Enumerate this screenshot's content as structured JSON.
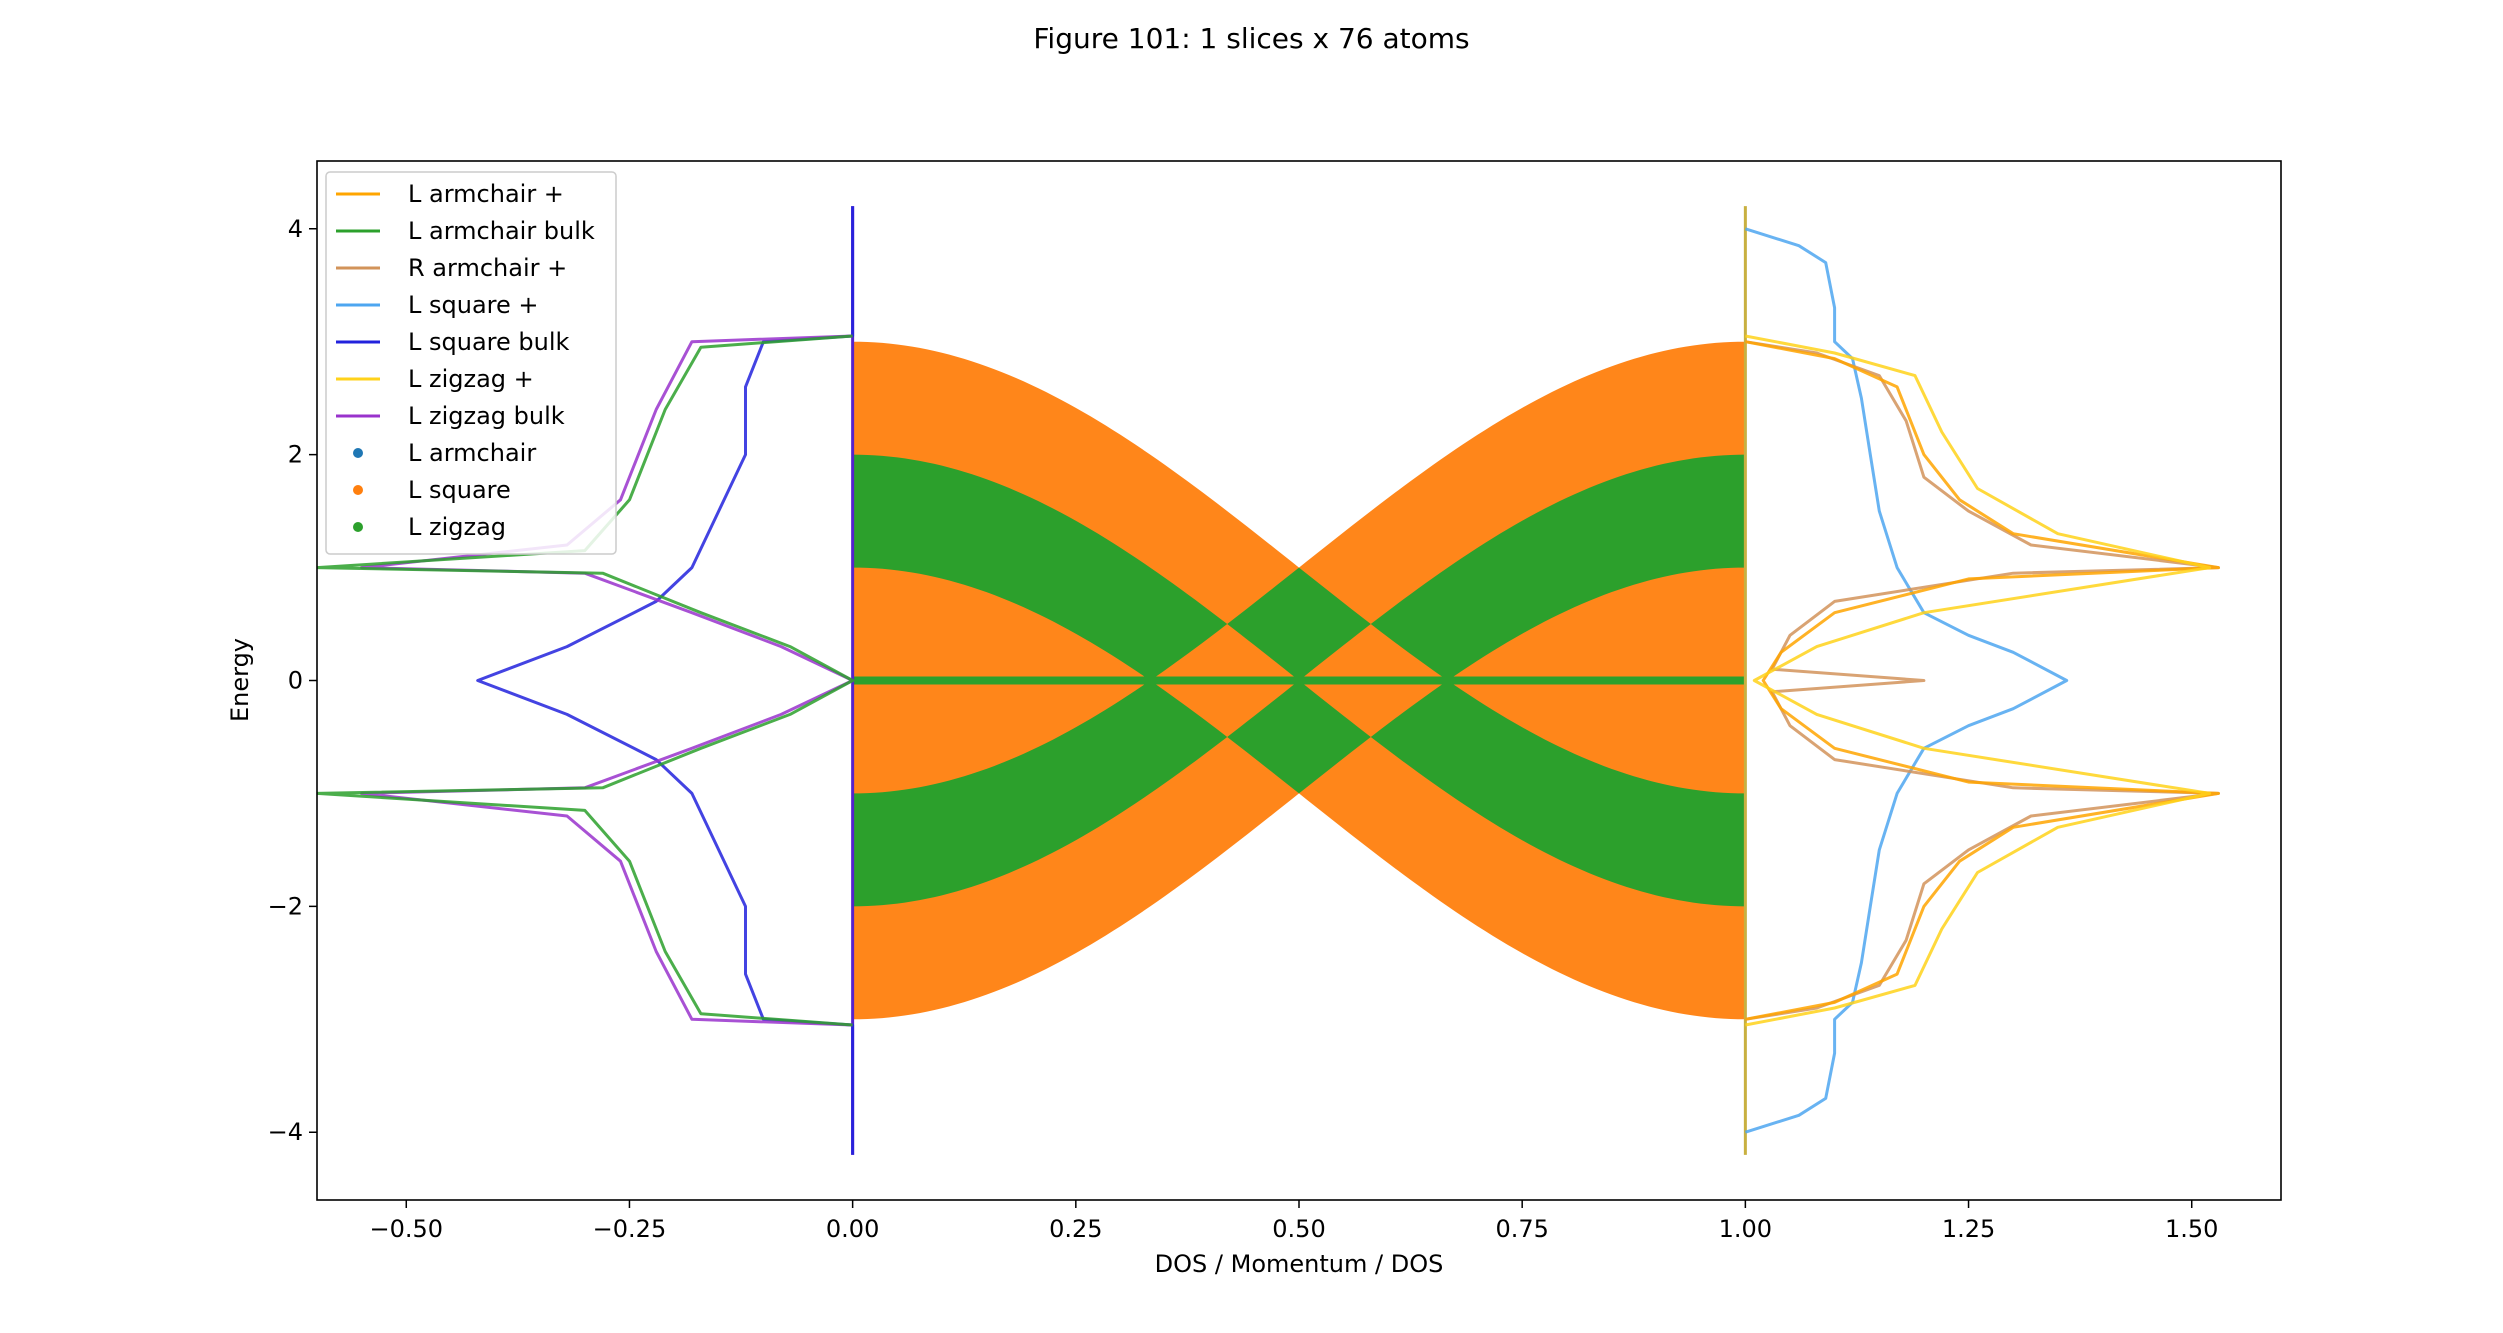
{
  "figure_title": "Figure 101: 1 slices x 76 atoms",
  "chart_data": {
    "type": "line",
    "title": "Figure 101: 1 slices x 76 atoms",
    "xlabel": "DOS / Momentum / DOS",
    "ylabel": "Energy",
    "xlim": [
      -0.6,
      1.6
    ],
    "ylim": [
      -4.6,
      4.6
    ],
    "xticks": [
      -0.5,
      -0.25,
      0.0,
      0.25,
      0.5,
      0.75,
      1.0,
      1.25,
      1.5
    ],
    "xtick_labels": [
      "−0.50",
      "−0.25",
      "0.00",
      "0.25",
      "0.50",
      "0.75",
      "1.00",
      "1.25",
      "1.50"
    ],
    "yticks": [
      -4,
      -2,
      0,
      2,
      4
    ],
    "ytick_labels": [
      "−4",
      "−2",
      "0",
      "2",
      "4"
    ],
    "grid": false,
    "legend_position": "upper-left",
    "legend": [
      {
        "label": "L armchair +",
        "kind": "line",
        "color": "#FFA500"
      },
      {
        "label": "L armchair bulk",
        "kind": "line",
        "color": "#2CA02C"
      },
      {
        "label": "R armchair +",
        "kind": "line",
        "color": "#D2935A"
      },
      {
        "label": "L square +",
        "kind": "line",
        "color": "#4DA6F0"
      },
      {
        "label": "L square bulk",
        "kind": "line",
        "color": "#2222DD"
      },
      {
        "label": "L zigzag +",
        "kind": "line",
        "color": "#FFD21A"
      },
      {
        "label": "L zigzag bulk",
        "kind": "line",
        "color": "#9932CC"
      },
      {
        "label": "L armchair",
        "kind": "marker",
        "color": "#1F77B4"
      },
      {
        "label": "L square",
        "kind": "marker",
        "color": "#FF7F0E"
      },
      {
        "label": "L zigzag",
        "kind": "marker",
        "color": "#2CA02C"
      }
    ],
    "series": [
      {
        "name": "L square +",
        "color": "#4DA6F0",
        "points": [
          [
            1.0,
            -4.0
          ],
          [
            1.02,
            -3.95
          ],
          [
            1.06,
            -3.85
          ],
          [
            1.09,
            -3.7
          ],
          [
            1.1,
            -3.3
          ],
          [
            1.1,
            -3.0
          ],
          [
            1.12,
            -2.85
          ],
          [
            1.13,
            -2.5
          ],
          [
            1.14,
            -2.0
          ],
          [
            1.15,
            -1.5
          ],
          [
            1.17,
            -1.0
          ],
          [
            1.2,
            -0.6
          ],
          [
            1.25,
            -0.4
          ],
          [
            1.3,
            -0.25
          ],
          [
            1.36,
            0.0
          ],
          [
            1.3,
            0.25
          ],
          [
            1.25,
            0.4
          ],
          [
            1.2,
            0.6
          ],
          [
            1.17,
            1.0
          ],
          [
            1.15,
            1.5
          ],
          [
            1.14,
            2.0
          ],
          [
            1.13,
            2.5
          ],
          [
            1.12,
            2.85
          ],
          [
            1.1,
            3.0
          ],
          [
            1.1,
            3.3
          ],
          [
            1.09,
            3.7
          ],
          [
            1.06,
            3.85
          ],
          [
            1.02,
            3.95
          ],
          [
            1.0,
            4.0
          ]
        ]
      },
      {
        "name": "R armchair +",
        "color": "#D2935A",
        "points": [
          [
            1.0,
            -3.0
          ],
          [
            1.08,
            -2.9
          ],
          [
            1.15,
            -2.7
          ],
          [
            1.18,
            -2.3
          ],
          [
            1.2,
            -1.8
          ],
          [
            1.25,
            -1.5
          ],
          [
            1.32,
            -1.2
          ],
          [
            1.53,
            -1.0
          ],
          [
            1.3,
            -0.95
          ],
          [
            1.1,
            -0.7
          ],
          [
            1.05,
            -0.4
          ],
          [
            1.03,
            -0.1
          ],
          [
            1.2,
            0.0
          ],
          [
            1.03,
            0.1
          ],
          [
            1.05,
            0.4
          ],
          [
            1.1,
            0.7
          ],
          [
            1.3,
            0.95
          ],
          [
            1.53,
            1.0
          ],
          [
            1.32,
            1.2
          ],
          [
            1.25,
            1.5
          ],
          [
            1.2,
            1.8
          ],
          [
            1.18,
            2.3
          ],
          [
            1.15,
            2.7
          ],
          [
            1.08,
            2.9
          ],
          [
            1.0,
            3.0
          ]
        ]
      },
      {
        "name": "L armchair +",
        "color": "#FFA500",
        "points": [
          [
            1.0,
            -3.0
          ],
          [
            1.1,
            -2.85
          ],
          [
            1.17,
            -2.6
          ],
          [
            1.2,
            -2.0
          ],
          [
            1.24,
            -1.6
          ],
          [
            1.3,
            -1.3
          ],
          [
            1.53,
            -1.0
          ],
          [
            1.25,
            -0.9
          ],
          [
            1.1,
            -0.6
          ],
          [
            1.04,
            -0.25
          ],
          [
            1.02,
            0.0
          ],
          [
            1.04,
            0.25
          ],
          [
            1.1,
            0.6
          ],
          [
            1.25,
            0.9
          ],
          [
            1.53,
            1.0
          ],
          [
            1.3,
            1.3
          ],
          [
            1.24,
            1.6
          ],
          [
            1.2,
            2.0
          ],
          [
            1.17,
            2.6
          ],
          [
            1.1,
            2.85
          ],
          [
            1.0,
            3.0
          ]
        ]
      },
      {
        "name": "L zigzag +",
        "color": "#FFD21A",
        "points": [
          [
            1.0,
            -3.05
          ],
          [
            1.1,
            -2.9
          ],
          [
            1.19,
            -2.7
          ],
          [
            1.22,
            -2.2
          ],
          [
            1.26,
            -1.7
          ],
          [
            1.35,
            -1.3
          ],
          [
            1.52,
            -1.0
          ],
          [
            1.2,
            -0.6
          ],
          [
            1.08,
            -0.3
          ],
          [
            1.01,
            0.0
          ],
          [
            1.08,
            0.3
          ],
          [
            1.2,
            0.6
          ],
          [
            1.52,
            1.0
          ],
          [
            1.35,
            1.3
          ],
          [
            1.26,
            1.7
          ],
          [
            1.22,
            2.2
          ],
          [
            1.19,
            2.7
          ],
          [
            1.1,
            2.9
          ],
          [
            1.0,
            3.05
          ]
        ]
      },
      {
        "name": "L square bulk",
        "color": "#2222DD",
        "points": [
          [
            0.0,
            -4.2
          ],
          [
            0.0,
            -3.05
          ],
          [
            -0.1,
            -3.0
          ],
          [
            -0.12,
            -2.6
          ],
          [
            -0.12,
            -2.0
          ],
          [
            -0.15,
            -1.5
          ],
          [
            -0.18,
            -1.0
          ],
          [
            -0.22,
            -0.7
          ],
          [
            -0.32,
            -0.3
          ],
          [
            -0.42,
            0.0
          ],
          [
            -0.32,
            0.3
          ],
          [
            -0.22,
            0.7
          ],
          [
            -0.18,
            1.0
          ],
          [
            -0.15,
            1.5
          ],
          [
            -0.12,
            2.0
          ],
          [
            -0.12,
            2.6
          ],
          [
            -0.1,
            3.0
          ],
          [
            0.0,
            3.05
          ],
          [
            0.0,
            4.2
          ]
        ]
      },
      {
        "name": "L zigzag bulk",
        "color": "#9932CC",
        "points": [
          [
            0.0,
            -3.05
          ],
          [
            -0.18,
            -3.0
          ],
          [
            -0.22,
            -2.4
          ],
          [
            -0.26,
            -1.6
          ],
          [
            -0.32,
            -1.2
          ],
          [
            -0.55,
            -1.0
          ],
          [
            -0.3,
            -0.95
          ],
          [
            -0.18,
            -0.6
          ],
          [
            -0.08,
            -0.3
          ],
          [
            0.0,
            0.0
          ],
          [
            -0.08,
            0.3
          ],
          [
            -0.18,
            0.6
          ],
          [
            -0.3,
            0.95
          ],
          [
            -0.55,
            1.0
          ],
          [
            -0.32,
            1.2
          ],
          [
            -0.26,
            1.6
          ],
          [
            -0.22,
            2.4
          ],
          [
            -0.18,
            3.0
          ],
          [
            0.0,
            3.05
          ]
        ]
      },
      {
        "name": "L armchair bulk",
        "color": "#2CA02C",
        "points": [
          [
            0.0,
            -3.05
          ],
          [
            -0.17,
            -2.95
          ],
          [
            -0.21,
            -2.4
          ],
          [
            -0.25,
            -1.6
          ],
          [
            -0.3,
            -1.15
          ],
          [
            -0.6,
            -1.0
          ],
          [
            -0.28,
            -0.95
          ],
          [
            -0.17,
            -0.6
          ],
          [
            -0.07,
            -0.3
          ],
          [
            0.0,
            0.0
          ],
          [
            -0.07,
            0.3
          ],
          [
            -0.17,
            0.6
          ],
          [
            -0.28,
            0.95
          ],
          [
            -0.6,
            1.0
          ],
          [
            -0.3,
            1.15
          ],
          [
            -0.25,
            1.6
          ],
          [
            -0.21,
            2.4
          ],
          [
            -0.17,
            2.95
          ],
          [
            0.0,
            3.05
          ]
        ]
      }
    ],
    "scatter_bands": [
      {
        "name": "L square",
        "color": "#FF7F0E",
        "x_range": [
          0.0,
          1.0
        ],
        "band_edge_formula": "E(k)=±(1+2|cos(πk)|) & ±(1−2|cos(πk)|)"
      },
      {
        "name": "L zigzag",
        "color": "#2CA02C",
        "x_range": [
          0.0,
          1.0
        ],
        "flat_band": 0
      }
    ]
  }
}
